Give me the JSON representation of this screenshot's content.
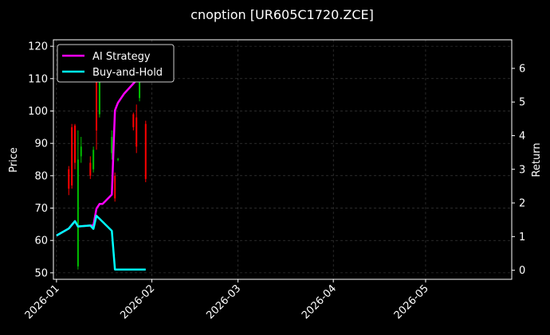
{
  "chart_data": {
    "type": "candlestick+line",
    "title": "cnoption [UR605C1720.ZCE]",
    "ylabel_left": "Price",
    "ylabel_right": "Return",
    "ylim_left": [
      48,
      122
    ],
    "ylim_right": [
      -0.27,
      6.85
    ],
    "yticks_left": [
      "50",
      "60",
      "70",
      "80",
      "90",
      "100",
      "110",
      "120"
    ],
    "yticks_right": [
      "0",
      "1",
      "2",
      "3",
      "4",
      "5",
      "6"
    ],
    "xlim": [
      "2025-12-31",
      "2026-05-29"
    ],
    "xticks": [
      "2026-01",
      "2026-02",
      "2026-03",
      "2026-04",
      "2026-05"
    ],
    "grid": true,
    "legend_position": "top-left",
    "colors": {
      "up": "#00c000",
      "down": "#ff0000",
      "ai": "#ff00ff",
      "bh": "#00ffff",
      "background": "#000000",
      "grid": "#444444"
    },
    "candles": [
      {
        "date": "2026-01-05",
        "open": 82,
        "high": 83,
        "low": 74,
        "close": 76
      },
      {
        "date": "2026-01-06",
        "open": 95,
        "high": 96,
        "low": 76,
        "close": 77
      },
      {
        "date": "2026-01-07",
        "open": 95.5,
        "high": 96,
        "low": 82,
        "close": 84
      },
      {
        "date": "2026-01-08",
        "open": 52,
        "high": 94,
        "low": 51,
        "close": 85
      },
      {
        "date": "2026-01-09",
        "open": 86,
        "high": 92,
        "low": 84,
        "close": 89
      },
      {
        "date": "2026-01-12",
        "open": 84,
        "high": 86,
        "low": 79,
        "close": 80
      },
      {
        "date": "2026-01-13",
        "open": 82,
        "high": 89,
        "low": 81,
        "close": 88
      },
      {
        "date": "2026-01-14",
        "open": 116,
        "high": 120,
        "low": 88,
        "close": 94
      },
      {
        "date": "2026-01-15",
        "open": 99,
        "high": 119,
        "low": 98,
        "close": 117
      },
      {
        "date": "2026-01-19",
        "open": 87,
        "high": 94,
        "low": 85,
        "close": 92
      },
      {
        "date": "2026-01-20",
        "open": 80,
        "high": 81,
        "low": 72,
        "close": 73
      },
      {
        "date": "2026-01-21",
        "open": 85,
        "high": 85.5,
        "low": 84.5,
        "close": 85.2
      },
      {
        "date": "2026-01-26",
        "open": 99,
        "high": 99.5,
        "low": 94,
        "close": 95
      },
      {
        "date": "2026-01-27",
        "open": 98,
        "high": 102,
        "low": 87,
        "close": 89
      },
      {
        "date": "2026-01-28",
        "open": 104,
        "high": 111,
        "low": 103,
        "close": 110
      },
      {
        "date": "2026-01-30",
        "open": 96,
        "high": 97,
        "low": 78,
        "close": 79
      }
    ],
    "series": [
      {
        "name": "AI Strategy",
        "dates": [
          "2026-01-01",
          "2026-01-05",
          "2026-01-07",
          "2026-01-08",
          "2026-01-12",
          "2026-01-13",
          "2026-01-14",
          "2026-01-15",
          "2026-01-16",
          "2026-01-19",
          "2026-01-20",
          "2026-01-21",
          "2026-01-23",
          "2026-01-26",
          "2026-01-28",
          "2026-01-30"
        ],
        "values": [
          1.03,
          1.24,
          1.46,
          1.3,
          1.33,
          1.33,
          1.83,
          1.97,
          1.97,
          2.25,
          4.75,
          4.98,
          5.25,
          5.55,
          5.75,
          6.05
        ]
      },
      {
        "name": "Buy-and-Hold",
        "dates": [
          "2026-01-01",
          "2026-01-05",
          "2026-01-07",
          "2026-01-08",
          "2026-01-12",
          "2026-01-13",
          "2026-01-14",
          "2026-01-19",
          "2026-01-20",
          "2026-01-21",
          "2026-01-30"
        ],
        "values": [
          1.03,
          1.24,
          1.46,
          1.3,
          1.33,
          1.23,
          1.62,
          1.17,
          0.02,
          0.02,
          0.02
        ]
      }
    ]
  }
}
